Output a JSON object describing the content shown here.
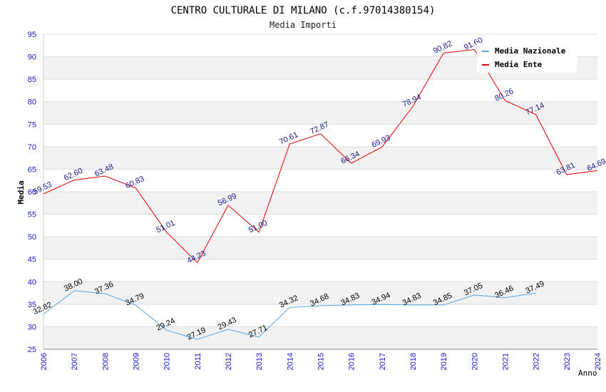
{
  "chart_data": {
    "type": "line",
    "title": "CENTRO CULTURALE DI MILANO (c.f.97014380154)",
    "subtitle": "Media Importi",
    "xlabel": "Anno",
    "ylabel": "Media",
    "ylim": [
      25,
      95
    ],
    "yticks": [
      "25",
      "30",
      "35",
      "40",
      "45",
      "50",
      "55",
      "60",
      "65",
      "70",
      "75",
      "80",
      "85",
      "90",
      "95"
    ],
    "categories": [
      "2006",
      "2007",
      "2008",
      "2009",
      "2010",
      "2011",
      "2012",
      "2013",
      "2014",
      "2015",
      "2016",
      "2017",
      "2018",
      "2019",
      "2020",
      "2021",
      "2022",
      "2023",
      "2024"
    ],
    "legend_position": "top-right",
    "grid": true,
    "series": [
      {
        "name": "Media Nazionale",
        "color": "#5aa7e0",
        "values": [
          32.82,
          38.0,
          37.36,
          34.79,
          29.24,
          27.19,
          29.43,
          27.71,
          34.32,
          34.68,
          34.83,
          34.94,
          34.83,
          34.85,
          37.05,
          36.46,
          37.49,
          null,
          null
        ],
        "labels": [
          "32.82",
          "38.00",
          "37.36",
          "34.79",
          "29.24",
          "27.19",
          "29.43",
          "27.71",
          "34.32",
          "34.68",
          "34.83",
          "34.94",
          "34.83",
          "34.85",
          "37.05",
          "36.46",
          "37.49",
          "",
          ""
        ]
      },
      {
        "name": "Media Ente",
        "color": "#e00000",
        "values": [
          59.53,
          62.6,
          63.48,
          60.83,
          51.01,
          44.23,
          56.99,
          51.0,
          70.61,
          72.87,
          66.34,
          69.93,
          78.94,
          90.82,
          91.6,
          80.26,
          77.14,
          63.81,
          64.69
        ],
        "labels": [
          "59.53",
          "62.60",
          "63.48",
          "60.83",
          "51.01",
          "44.23",
          "56.99",
          "51.00",
          "70.61",
          "72.87",
          "66.34",
          "69.93",
          "78.94",
          "90.82",
          "91.60",
          "80.26",
          "77.14",
          "63.81",
          "64.69"
        ]
      }
    ]
  }
}
